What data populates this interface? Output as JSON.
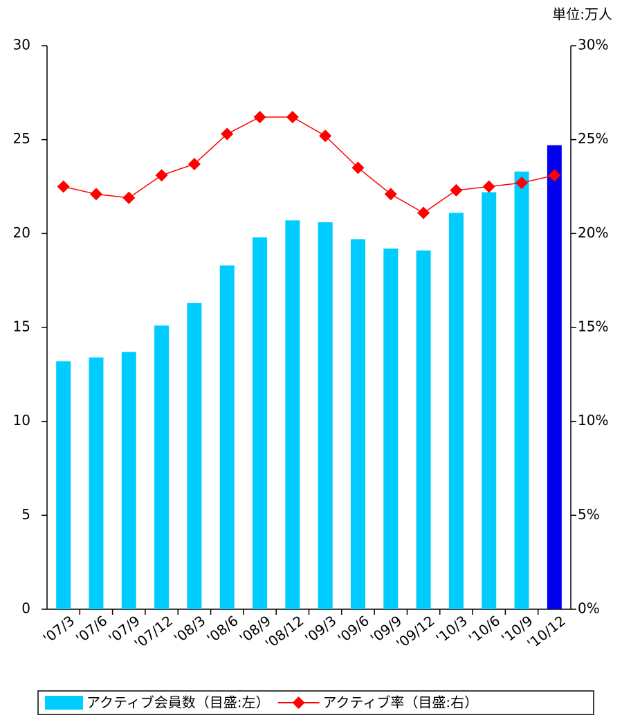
{
  "chart_data": {
    "type": "bar_line",
    "unit_label": "単位:万人",
    "categories": [
      "'07/3",
      "'07/6",
      "'07/9",
      "'07/12",
      "'08/3",
      "'08/6",
      "'08/9",
      "'08/12",
      "'09/3",
      "'09/6",
      "'09/9",
      "'09/12",
      "'10/3",
      "'10/6",
      "'10/9",
      "'10/12"
    ],
    "series": [
      {
        "name": "アクティブ会員数（目盛:左）",
        "type": "bar",
        "color": "#00ccff",
        "colors": [
          "#00ccff",
          "#00ccff",
          "#00ccff",
          "#00ccff",
          "#00ccff",
          "#00ccff",
          "#00ccff",
          "#00ccff",
          "#00ccff",
          "#00ccff",
          "#00ccff",
          "#00ccff",
          "#00ccff",
          "#00ccff",
          "#00ccff",
          "#0000ee"
        ],
        "values": [
          13.2,
          13.4,
          13.7,
          15.1,
          16.3,
          18.3,
          19.8,
          20.7,
          20.6,
          19.7,
          19.2,
          19.1,
          21.1,
          22.2,
          23.3,
          24.7
        ]
      },
      {
        "name": "アクティブ率（目盛:右）",
        "type": "line",
        "axis": "y2",
        "color": "#ff0000",
        "values": [
          22.5,
          22.1,
          21.9,
          23.1,
          23.7,
          25.3,
          26.2,
          26.2,
          25.2,
          23.5,
          22.1,
          21.1,
          22.3,
          22.5,
          22.7,
          23.1
        ]
      }
    ],
    "ylim": [
      0,
      30
    ],
    "yticks": [
      0,
      5,
      10,
      15,
      20,
      25,
      30
    ],
    "y2lim": [
      0,
      30
    ],
    "y2ticks": [
      {
        "value": 0,
        "label": "0%"
      },
      {
        "value": 5,
        "label": "5%"
      },
      {
        "value": 10,
        "label": "10%"
      },
      {
        "value": 15,
        "label": "15%"
      },
      {
        "value": 20,
        "label": "20%"
      },
      {
        "value": 25,
        "label": "25%"
      },
      {
        "value": 30,
        "label": "30%"
      }
    ],
    "legend": "bottom"
  }
}
